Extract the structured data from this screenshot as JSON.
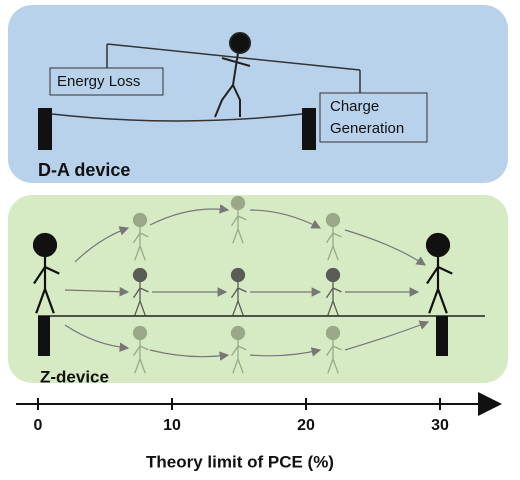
{
  "panels": [
    {
      "title": "D-A device",
      "loss_label": "Energy Loss",
      "generation_label": [
        "Charge",
        "Generation"
      ]
    },
    {
      "title": "Z-device"
    }
  ],
  "axis": {
    "ticks": [
      0,
      10,
      20,
      30
    ],
    "label": "Theory limit of PCE (%)"
  }
}
